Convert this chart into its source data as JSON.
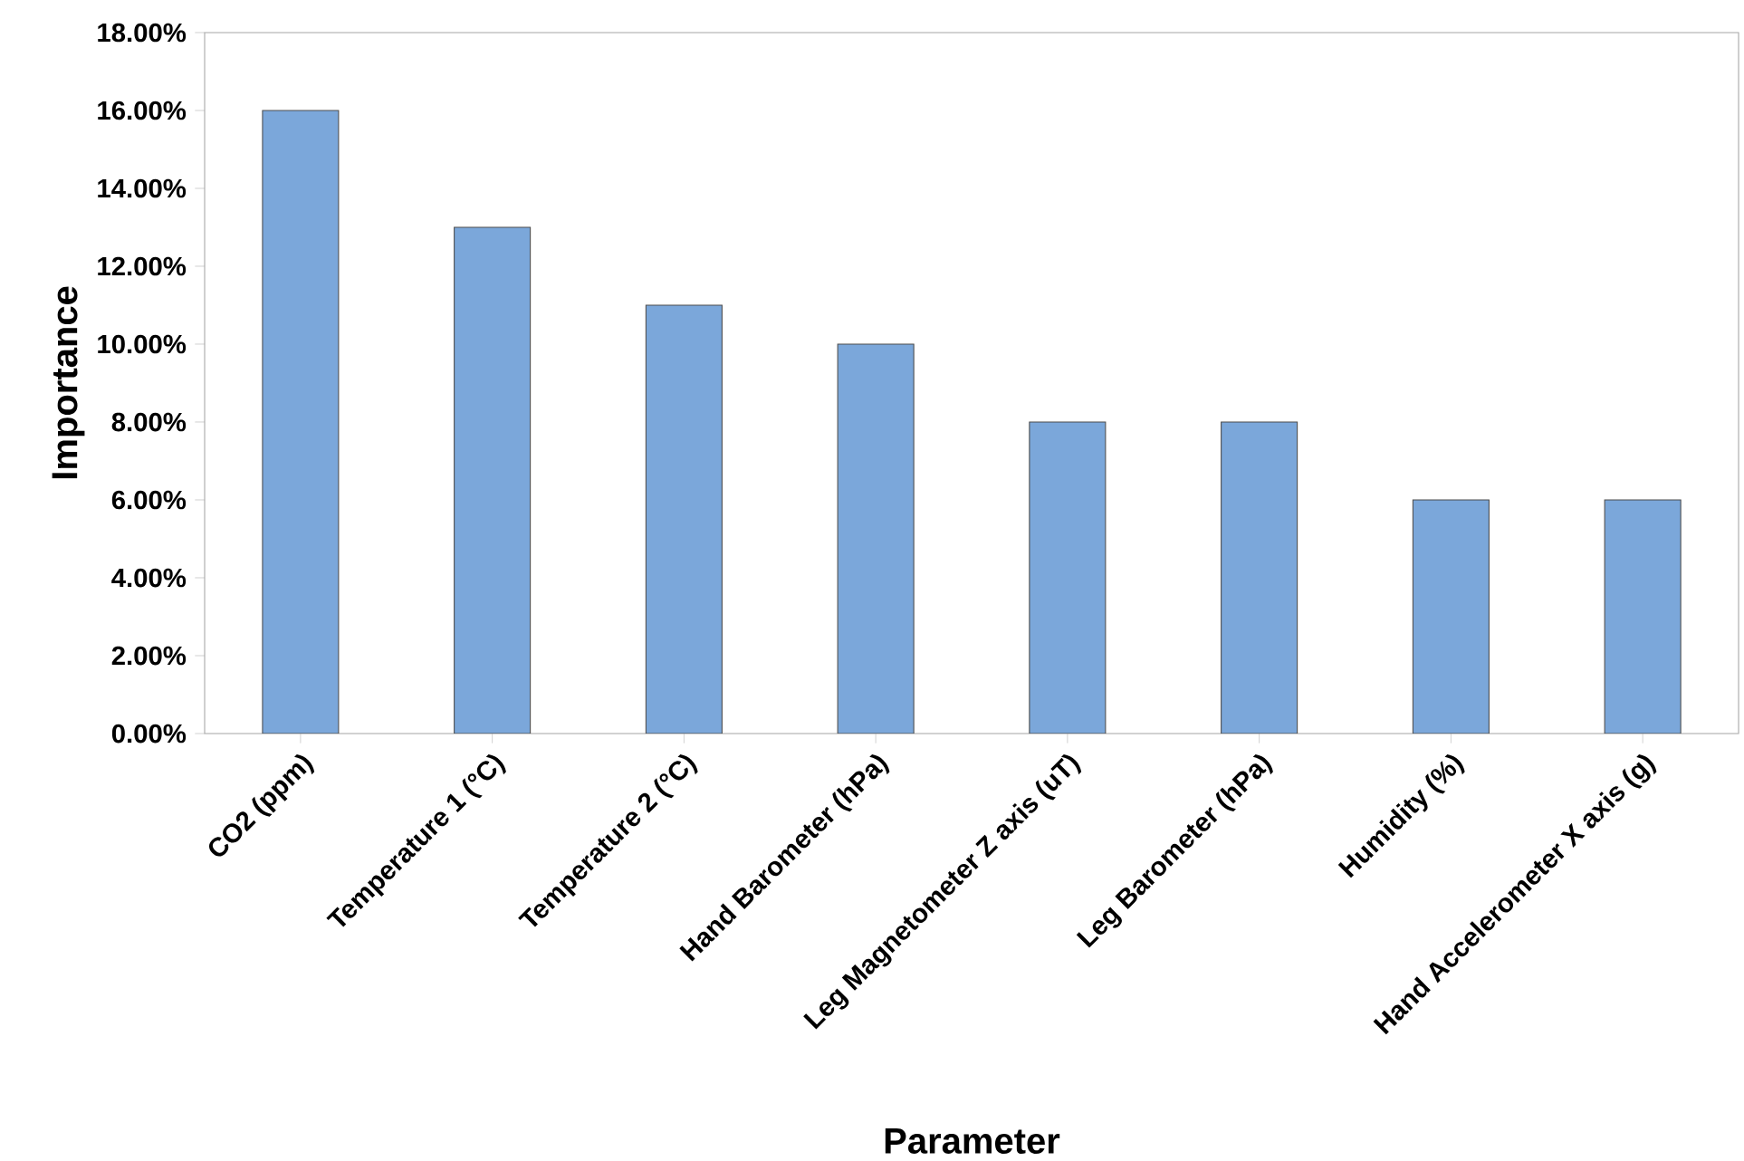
{
  "chart_data": {
    "type": "bar",
    "xlabel": "Parameter",
    "ylabel": "Importance",
    "categories": [
      "CO2 (ppm)",
      "Temperature 1 (°C)",
      "Temperature 2 (°C)",
      "Hand Barometer (hPa)",
      "Leg Magnetometer Z axis (uT)",
      "Leg Barometer (hPa)",
      "Humidity (%)",
      "Hand Accelerometer X axis (g)"
    ],
    "values": [
      16,
      13,
      11,
      10,
      8,
      8,
      6,
      6
    ],
    "color": "#7ba7da",
    "ylim": [
      0,
      18
    ],
    "yticks": [
      {
        "value": 0,
        "label": "0.00%"
      },
      {
        "value": 2,
        "label": "2.00%"
      },
      {
        "value": 4,
        "label": "4.00%"
      },
      {
        "value": 6,
        "label": "6.00%"
      },
      {
        "value": 8,
        "label": "8.00%"
      },
      {
        "value": 10,
        "label": "10.00%"
      },
      {
        "value": 12,
        "label": "12.00%"
      },
      {
        "value": 14,
        "label": "14.00%"
      },
      {
        "value": 16,
        "label": "16.00%"
      },
      {
        "value": 18,
        "label": "18.00%"
      }
    ]
  }
}
